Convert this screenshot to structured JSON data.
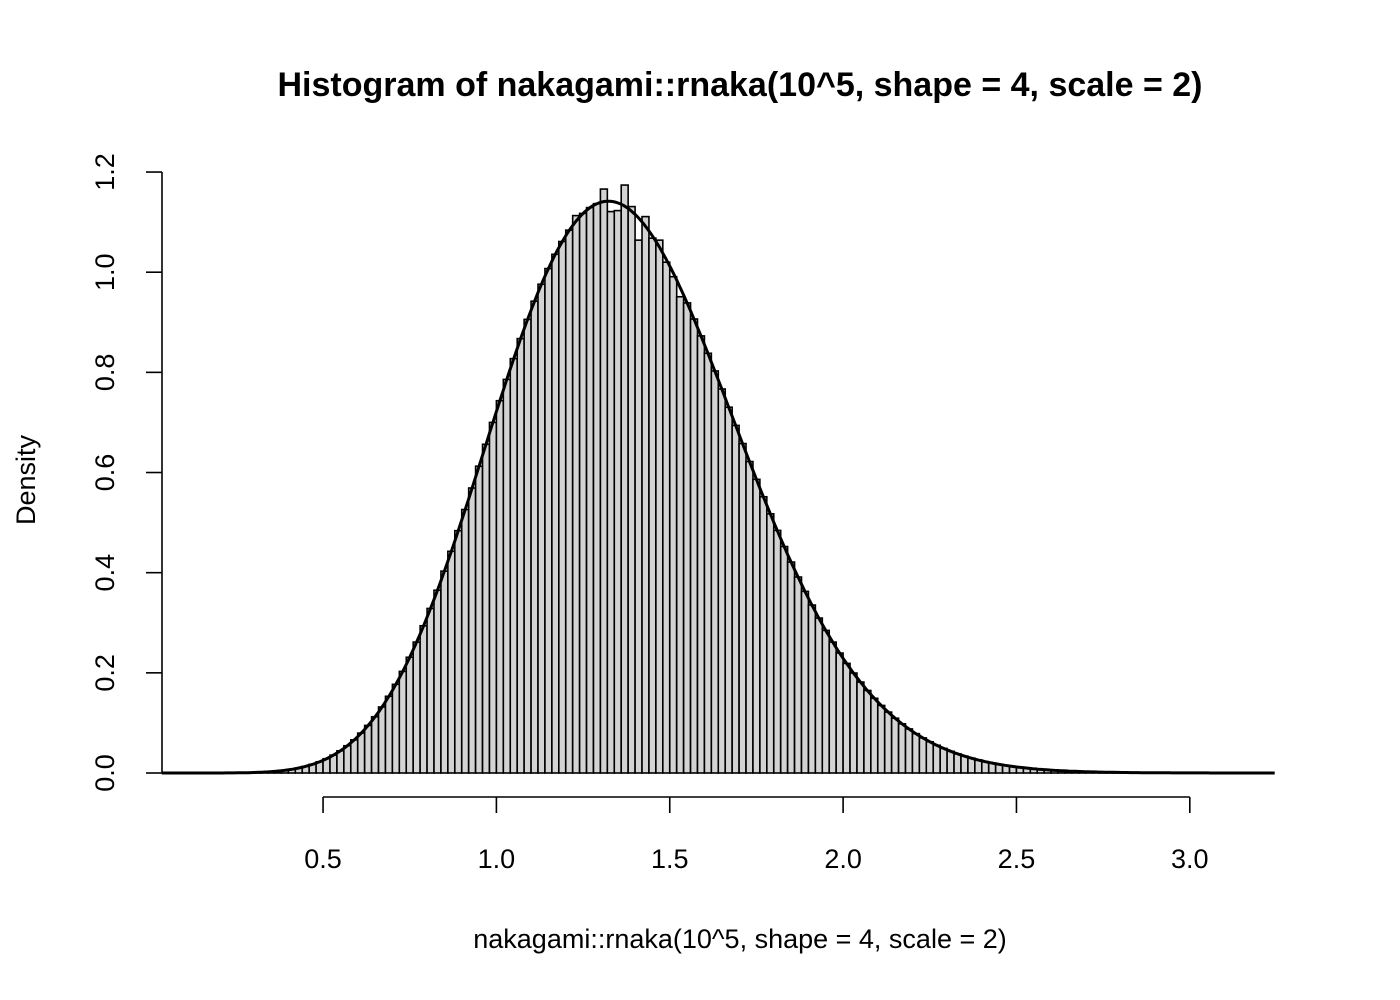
{
  "chart_data": {
    "type": "histogram",
    "title": "Histogram of nakagami::rnaka(10^5, shape = 4, scale = 2)",
    "xlabel": "nakagami::rnaka(10^5, shape = 4, scale = 2)",
    "ylabel": "Density",
    "xlim": [
      0,
      3.25
    ],
    "ylim": [
      0,
      1.2
    ],
    "x_ticks": [
      "0.5",
      "1.0",
      "1.5",
      "2.0",
      "2.5",
      "3.0"
    ],
    "x_tick_values": [
      0.5,
      1.0,
      1.5,
      2.0,
      2.5,
      3.0
    ],
    "y_ticks": [
      "0.0",
      "0.2",
      "0.4",
      "0.6",
      "0.8",
      "1.0",
      "1.2"
    ],
    "y_tick_values": [
      0,
      0.2,
      0.4,
      0.6,
      0.8,
      1.0,
      1.2
    ],
    "grid": false,
    "bar_fill": "#d3d3d3",
    "bar_stroke": "#000000",
    "bin_start": 0.04,
    "bin_width": 0.02,
    "densities": [
      0,
      0,
      0,
      0,
      1e-05,
      1e-05,
      2e-05,
      4e-05,
      9e-05,
      0.00016,
      0.00029,
      0.00048,
      0.00078,
      0.0012,
      0.0018,
      0.0027,
      0.0039,
      0.0054,
      0.0074,
      0.01,
      0.0133,
      0.0174,
      0.0224,
      0.0285,
      0.0357,
      0.0443,
      0.0544,
      0.0662,
      0.0797,
      0.095,
      0.1123,
      0.1318,
      0.1532,
      0.1771,
      0.2029,
      0.2311,
      0.2614,
      0.294,
      0.3286,
      0.365,
      0.4031,
      0.4427,
      0.4839,
      0.5261,
      0.5691,
      0.6126,
      0.6564,
      0.7001,
      0.7434,
      0.7859,
      0.8274,
      0.8674,
      0.9058,
      0.9421,
      0.976,
      1.0073,
      1.0358,
      1.0613,
      1.084,
      1.113,
      1.1174,
      1.129,
      1.1369,
      1.166,
      1.121,
      1.123,
      1.174,
      1.131,
      1.064,
      1.111,
      1.068,
      1.064,
      1.02,
      0.991,
      0.951,
      0.9387,
      0.9065,
      0.8728,
      0.8381,
      0.8028,
      0.7668,
      0.7304,
      0.6941,
      0.6578,
      0.6219,
      0.5864,
      0.5516,
      0.5175,
      0.4844,
      0.4522,
      0.4212,
      0.3913,
      0.3627,
      0.3354,
      0.3094,
      0.2847,
      0.2614,
      0.2395,
      0.2189,
      0.1996,
      0.1816,
      0.1648,
      0.1492,
      0.1349,
      0.1216,
      0.1094,
      0.0982,
      0.088,
      0.0786,
      0.0701,
      0.0624,
      0.0554,
      0.0491,
      0.0434,
      0.0383,
      0.0337,
      0.0296,
      0.026,
      0.0227,
      0.0198,
      0.0173,
      0.015,
      0.013,
      0.0113,
      0.0098,
      0.0084,
      0.0072,
      0.0062,
      0.0053,
      0.0046,
      0.0039,
      0.0033,
      0.0028,
      0.0024,
      0.002,
      0.0017,
      0.0014,
      0.0012,
      0.001,
      0.0008,
      0.0007,
      0.0006,
      0.0005,
      0.0004,
      0.0003,
      0.0003,
      0.0002,
      0.0002
    ],
    "density_curve": {
      "distribution": "nakagami",
      "shape": 4,
      "scale": 2,
      "from": 0.035,
      "to": 3.245,
      "color": "#000000"
    }
  }
}
